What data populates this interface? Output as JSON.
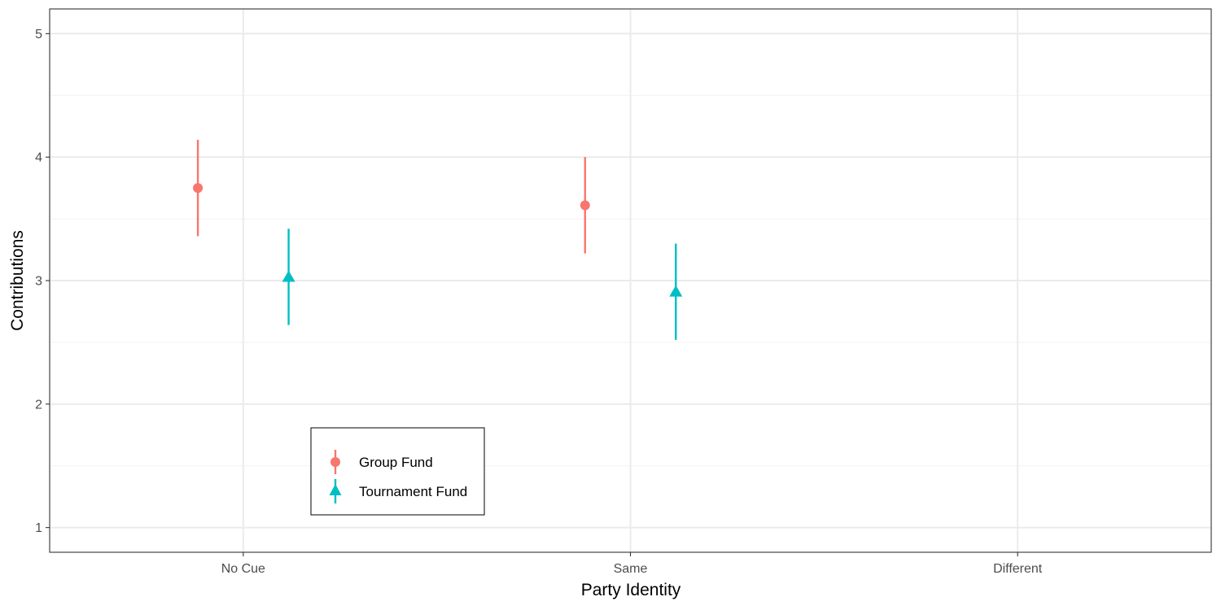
{
  "chart_data": {
    "type": "scatter",
    "xlabel": "Party Identity",
    "ylabel": "Contributions",
    "categories": [
      "No Cue",
      "Same",
      "Different"
    ],
    "ylim": [
      0.8,
      5.2
    ],
    "y_ticks": [
      "1",
      "2",
      "3",
      "4",
      "5"
    ],
    "grid": true,
    "legend_position": "bottom-left inside",
    "series": [
      {
        "name": "Group Fund",
        "color": "#F8766D",
        "shape": "circle",
        "points": [
          {
            "category": "No Cue",
            "y": 3.75,
            "ymin": 3.36,
            "ymax": 4.14
          },
          {
            "category": "Same",
            "y": 3.61,
            "ymin": 3.22,
            "ymax": 4.0
          }
        ]
      },
      {
        "name": "Tournament Fund",
        "color": "#00BFC4",
        "shape": "triangle",
        "points": [
          {
            "category": "No Cue",
            "y": 3.03,
            "ymin": 2.64,
            "ymax": 3.42
          },
          {
            "category": "Same",
            "y": 2.91,
            "ymin": 2.52,
            "ymax": 3.3
          }
        ]
      }
    ]
  }
}
